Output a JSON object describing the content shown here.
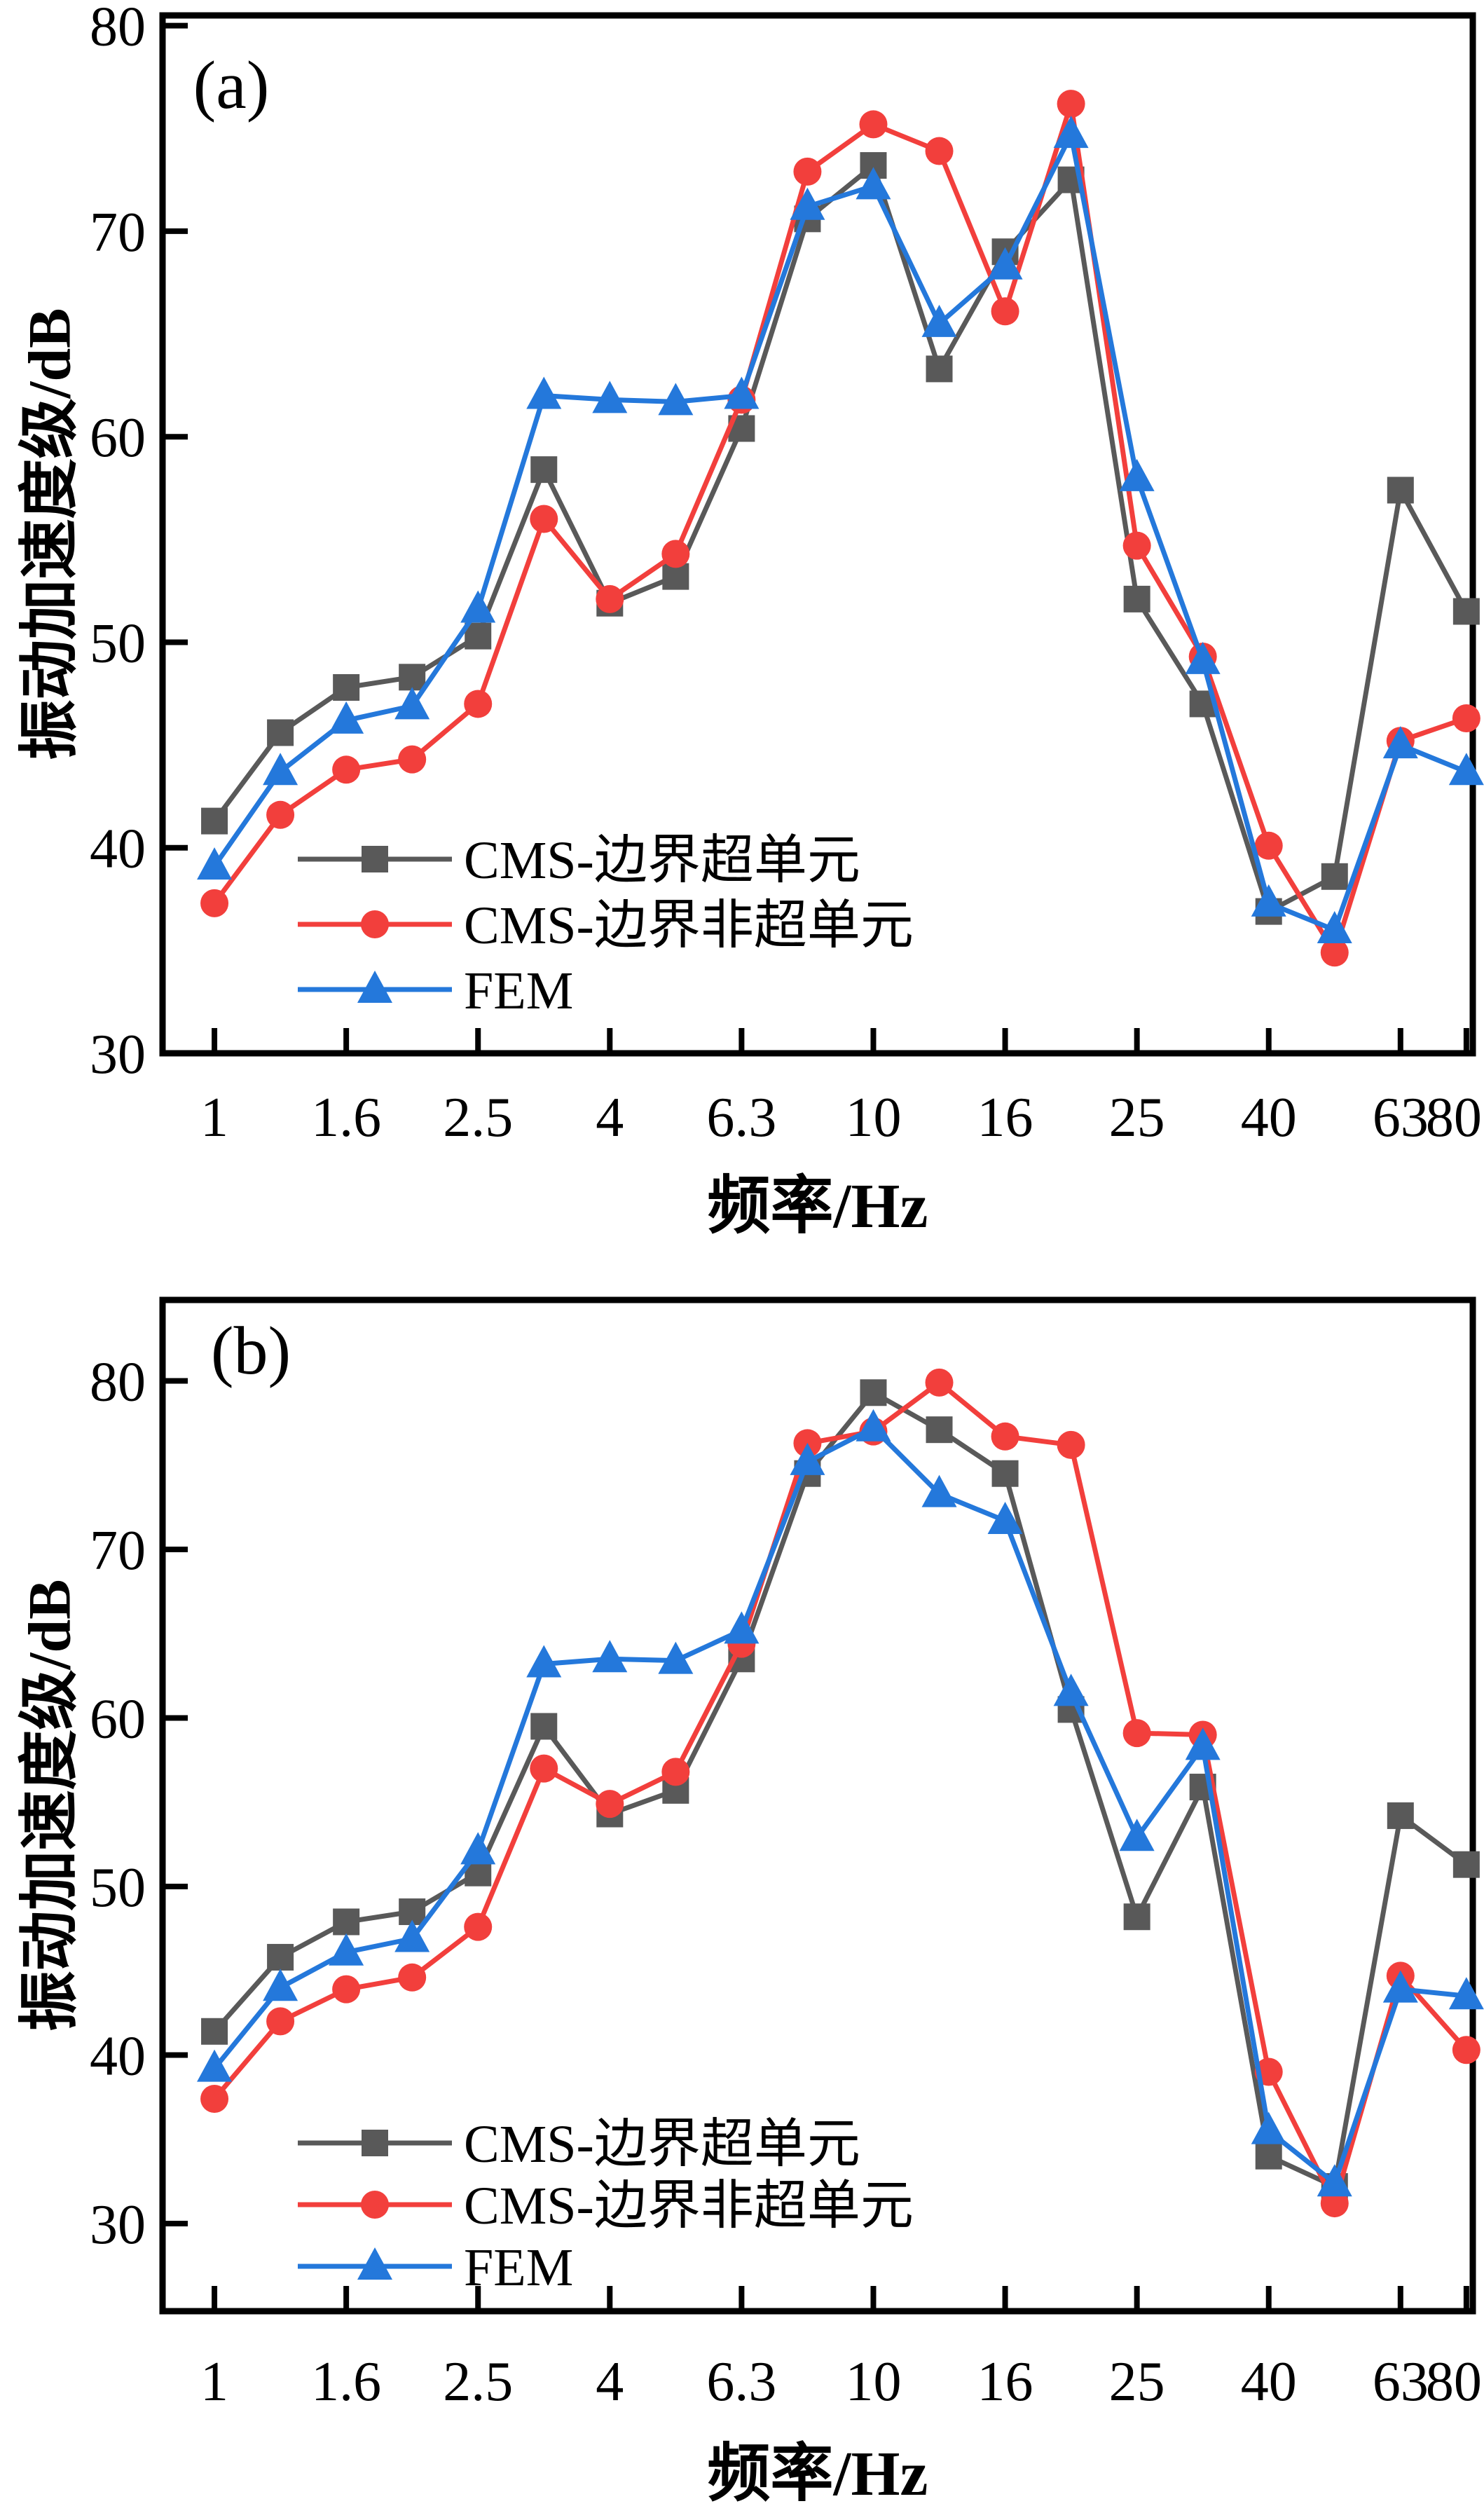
{
  "page": {
    "background": "#ffffff"
  },
  "axis": {
    "x_title": "频率/Hz",
    "y_title": "振动加速度级/dB",
    "x_tick_labels": [
      "1",
      "1.6",
      "2.5",
      "4",
      "6.3",
      "10",
      "16",
      "25",
      "40",
      "63",
      "80"
    ],
    "y_tick_labels": [
      "30",
      "40",
      "50",
      "60",
      "70",
      "80"
    ]
  },
  "chart_data": [
    {
      "type": "line",
      "panel_label": "(a)",
      "xlabel": "频率/Hz",
      "ylabel": "振动加速度级/dB",
      "x_scale": "one-third-octave bands (log-like, evenly spaced)",
      "categories": [
        "1",
        "1.25",
        "1.6",
        "2",
        "2.5",
        "3.15",
        "4",
        "5",
        "6.3",
        "8",
        "10",
        "12.5",
        "16",
        "20",
        "25",
        "31.5",
        "40",
        "50",
        "63",
        "80"
      ],
      "xtick_indices": [
        0,
        2,
        4,
        6,
        8,
        10,
        12,
        14,
        16,
        18,
        19
      ],
      "xtick_labels": [
        "1",
        "1.6",
        "2.5",
        "4",
        "6.3",
        "10",
        "16",
        "25",
        "40",
        "63",
        "80"
      ],
      "ylim": [
        30,
        80.5
      ],
      "yticks": [
        30,
        40,
        50,
        60,
        70,
        80
      ],
      "grid": false,
      "legend_position": "lower-left-inside",
      "series": [
        {
          "name": "CMS-边界超单元",
          "color": "#595959",
          "marker": "square",
          "values": [
            41.3,
            45.6,
            47.8,
            48.3,
            50.3,
            58.4,
            51.9,
            53.2,
            60.4,
            70.6,
            73.2,
            63.3,
            69.0,
            72.5,
            52.1,
            47.0,
            36.9,
            38.6,
            57.4,
            51.5
          ]
        },
        {
          "name": "CMS-边界非超单元",
          "color": "#f23f3c",
          "marker": "circle",
          "values": [
            37.3,
            41.6,
            43.8,
            44.3,
            47.0,
            56.0,
            52.1,
            54.3,
            61.8,
            72.9,
            75.2,
            73.9,
            66.1,
            76.2,
            54.7,
            49.3,
            40.1,
            34.9,
            45.2,
            46.3
          ]
        },
        {
          "name": "FEM",
          "color": "#2478db",
          "marker": "triangle",
          "values": [
            39.1,
            43.7,
            46.2,
            46.9,
            51.6,
            62.0,
            61.8,
            61.7,
            62.0,
            71.2,
            72.2,
            65.5,
            68.3,
            74.7,
            58.0,
            49.1,
            37.3,
            36.0,
            45.0,
            43.7
          ]
        }
      ]
    },
    {
      "type": "line",
      "panel_label": "(b)",
      "xlabel": "频率/Hz",
      "ylabel": "振动加速度级/dB",
      "x_scale": "one-third-octave bands (log-like, evenly spaced)",
      "categories": [
        "1",
        "1.25",
        "1.6",
        "2",
        "2.5",
        "3.15",
        "4",
        "5",
        "6.3",
        "8",
        "10",
        "12.5",
        "16",
        "20",
        "25",
        "31.5",
        "40",
        "50",
        "63",
        "80"
      ],
      "xtick_indices": [
        0,
        2,
        4,
        6,
        8,
        10,
        12,
        14,
        16,
        18,
        19
      ],
      "xtick_labels": [
        "1",
        "1.6",
        "2.5",
        "4",
        "6.3",
        "10",
        "16",
        "25",
        "40",
        "63",
        "80"
      ],
      "ylim": [
        24.8,
        84.8
      ],
      "yticks": [
        30,
        40,
        50,
        60,
        70,
        80
      ],
      "grid": false,
      "legend_position": "lower-left-inside",
      "series": [
        {
          "name": "CMS-边界超单元",
          "color": "#595959",
          "marker": "square",
          "values": [
            41.4,
            45.8,
            47.9,
            48.5,
            50.8,
            59.5,
            54.3,
            55.7,
            63.5,
            74.5,
            79.3,
            77.1,
            74.5,
            60.5,
            48.2,
            55.9,
            34.0,
            32.2,
            54.2,
            51.3
          ]
        },
        {
          "name": "CMS-边界非超单元",
          "color": "#f23f3c",
          "marker": "circle",
          "values": [
            37.4,
            42.0,
            43.9,
            44.6,
            47.6,
            57.0,
            54.9,
            56.8,
            64.4,
            76.3,
            77.0,
            79.9,
            76.7,
            76.2,
            59.1,
            59.0,
            39.0,
            31.2,
            44.7,
            40.3
          ]
        },
        {
          "name": "FEM",
          "color": "#2478db",
          "marker": "triangle",
          "values": [
            39.2,
            44.0,
            46.1,
            46.9,
            52.1,
            63.2,
            63.5,
            63.4,
            65.2,
            75.2,
            77.2,
            73.3,
            71.7,
            61.5,
            52.9,
            58.3,
            35.5,
            32.4,
            43.9,
            43.5
          ]
        }
      ]
    }
  ]
}
